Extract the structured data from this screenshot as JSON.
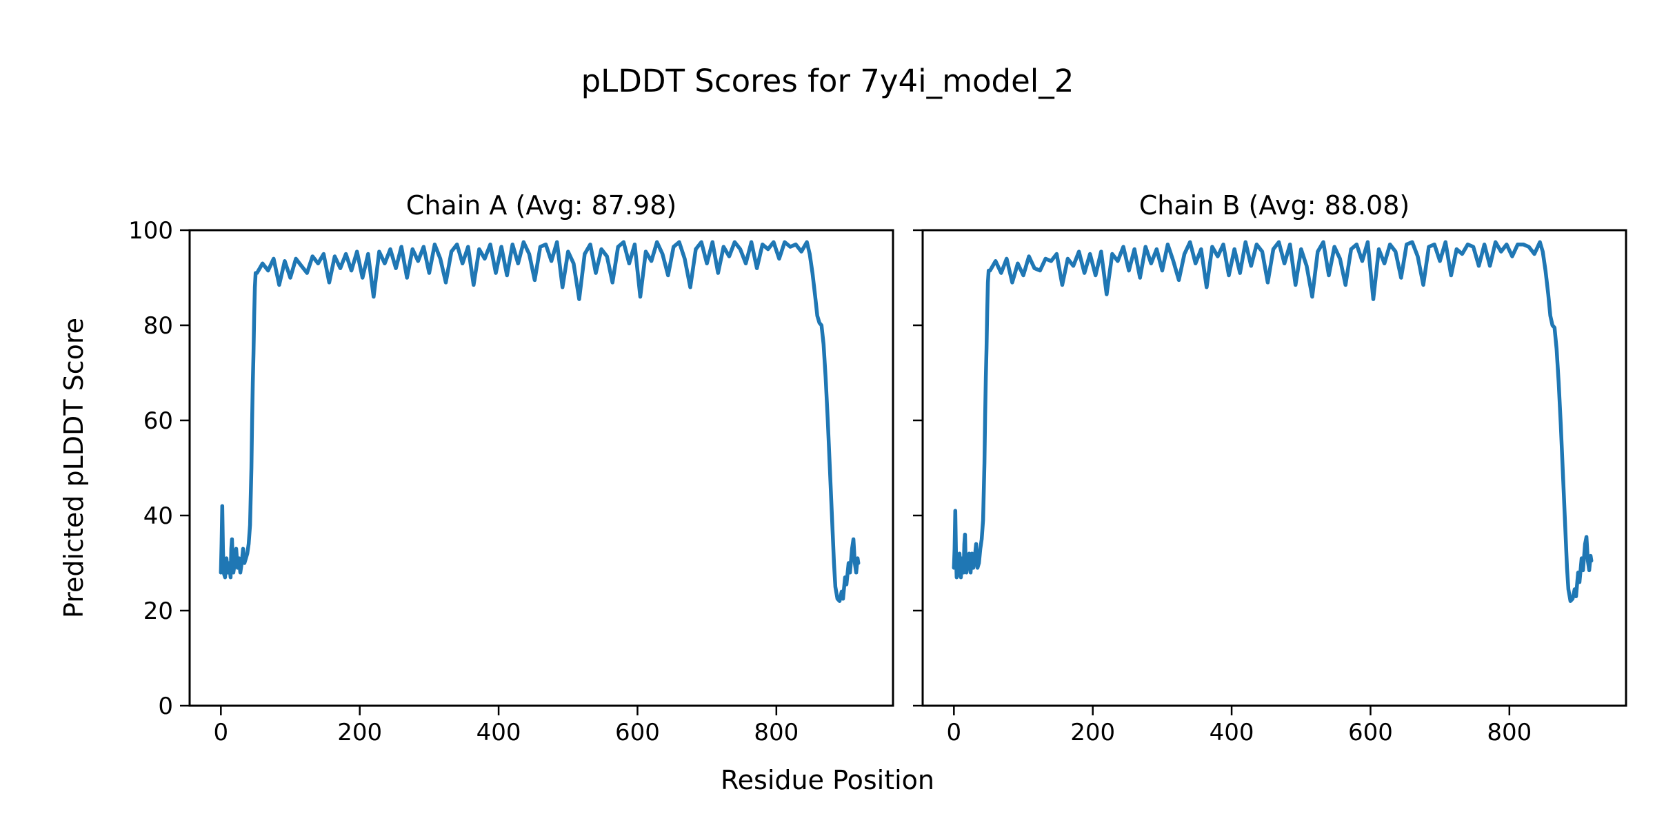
{
  "figure": {
    "title": "pLDDT Scores for 7y4i_model_2",
    "xlabel": "Residue Position",
    "ylabel": "Predicted pLDDT Score",
    "background_color": "#ffffff",
    "text_color": "#000000",
    "spine_color": "#000000",
    "line_color": "#1f77b4"
  },
  "chart_data": [
    {
      "type": "line",
      "title": "Chain A (Avg: 87.98)",
      "chain": "A",
      "avg_plddt": 87.98,
      "xlim": [
        -45,
        968
      ],
      "ylim": [
        0,
        100
      ],
      "x_ticks": [
        0,
        200,
        400,
        600,
        800
      ],
      "y_ticks": [
        0,
        20,
        40,
        60,
        80,
        100
      ],
      "grid": false,
      "legend": false,
      "show_y_labels": true,
      "series": [
        {
          "name": "pLDDT",
          "color": "#1f77b4",
          "head": [
            [
              0,
              28
            ],
            [
              1,
              34
            ],
            [
              2,
              42
            ],
            [
              3,
              33
            ],
            [
              4,
              28
            ],
            [
              6,
              27
            ],
            [
              8,
              31
            ],
            [
              10,
              28
            ],
            [
              12,
              30
            ],
            [
              14,
              27
            ],
            [
              15,
              33
            ],
            [
              16,
              35
            ],
            [
              17,
              31
            ],
            [
              18,
              28
            ],
            [
              20,
              30
            ],
            [
              22,
              33
            ],
            [
              24,
              29
            ],
            [
              26,
              31
            ],
            [
              28,
              28
            ],
            [
              30,
              30
            ],
            [
              32,
              33
            ],
            [
              34,
              30
            ],
            [
              36,
              31
            ],
            [
              38,
              32
            ],
            [
              40,
              34
            ],
            [
              42,
              38
            ],
            [
              44,
              50
            ],
            [
              45,
              60
            ],
            [
              46,
              68
            ],
            [
              47,
              74
            ],
            [
              48,
              82
            ],
            [
              49,
              88
            ],
            [
              50,
              91
            ]
          ],
          "plateau": {
            "x0": 52,
            "dx": 8,
            "y": [
              91,
              93,
              91.5,
              94,
              88.5,
              93.5,
              90,
              94,
              92.5,
              91,
              94.5,
              93,
              95,
              89,
              94.5,
              92,
              95,
              91.5,
              95.5,
              90,
              95,
              86,
              95.5,
              93,
              96,
              92,
              96.5,
              90,
              96,
              93.5,
              96.5,
              91,
              97,
              94,
              89,
              95.5,
              97,
              93,
              96.5,
              88.5,
              96,
              94,
              97,
              91,
              96.5,
              90.5,
              97,
              93,
              97.5,
              95,
              89.5,
              96.5,
              97,
              93.5,
              97.5,
              88,
              95.5,
              93,
              85.5,
              95,
              97,
              91,
              96,
              94.5,
              89,
              96.5,
              97.5,
              93,
              97,
              86,
              95.5,
              93.5,
              97.5,
              95,
              90.5,
              96.5,
              97.5,
              94,
              88,
              96,
              97.5,
              93,
              97.5,
              91,
              96.5,
              94.5,
              97.5,
              96,
              93,
              97.5,
              92,
              97,
              96,
              97.5,
              94,
              97.5,
              96.5,
              97,
              95.5,
              97.5
            ]
          },
          "tail": [
            [
              848,
              95
            ],
            [
              852,
              91
            ],
            [
              856,
              86
            ],
            [
              859,
              82
            ],
            [
              862,
              80.5
            ],
            [
              865,
              80
            ],
            [
              868,
              76
            ],
            [
              871,
              69
            ],
            [
              874,
              60
            ],
            [
              877,
              50
            ],
            [
              880,
              40
            ],
            [
              883,
              30
            ],
            [
              885,
              25
            ],
            [
              888,
              22.5
            ],
            [
              891,
              22
            ],
            [
              894,
              24
            ],
            [
              896,
              22.5
            ],
            [
              899,
              27
            ],
            [
              901,
              25.5
            ],
            [
              904,
              30
            ],
            [
              906,
              28
            ],
            [
              909,
              33
            ],
            [
              911,
              35
            ],
            [
              913,
              30
            ],
            [
              915,
              28
            ],
            [
              917,
              31
            ],
            [
              918,
              30
            ]
          ]
        }
      ]
    },
    {
      "type": "line",
      "title": "Chain B (Avg: 88.08)",
      "chain": "B",
      "avg_plddt": 88.08,
      "xlim": [
        -45,
        968
      ],
      "ylim": [
        0,
        100
      ],
      "x_ticks": [
        0,
        200,
        400,
        600,
        800
      ],
      "y_ticks": [
        0,
        20,
        40,
        60,
        80,
        100
      ],
      "grid": false,
      "legend": false,
      "show_y_labels": false,
      "series": [
        {
          "name": "pLDDT",
          "color": "#1f77b4",
          "head": [
            [
              0,
              29
            ],
            [
              1,
              33
            ],
            [
              2,
              41
            ],
            [
              3,
              32
            ],
            [
              4,
              27
            ],
            [
              6,
              28
            ],
            [
              8,
              32
            ],
            [
              10,
              27
            ],
            [
              12,
              31
            ],
            [
              14,
              28
            ],
            [
              15,
              34
            ],
            [
              16,
              36
            ],
            [
              17,
              30
            ],
            [
              18,
              28
            ],
            [
              20,
              31
            ],
            [
              22,
              32
            ],
            [
              24,
              28
            ],
            [
              26,
              32
            ],
            [
              28,
              29
            ],
            [
              30,
              31
            ],
            [
              32,
              34
            ],
            [
              34,
              29
            ],
            [
              36,
              30
            ],
            [
              38,
              33
            ],
            [
              40,
              35
            ],
            [
              42,
              39
            ],
            [
              44,
              51
            ],
            [
              45,
              61
            ],
            [
              46,
              69
            ],
            [
              47,
              75
            ],
            [
              48,
              83
            ],
            [
              49,
              89
            ],
            [
              50,
              91.5
            ]
          ],
          "plateau": {
            "x0": 52,
            "dx": 8,
            "y": [
              91.5,
              93.5,
              91,
              94,
              89,
              93,
              90.5,
              94.5,
              92,
              91.5,
              94,
              93.5,
              95,
              88.5,
              94,
              92.5,
              95.5,
              91,
              95,
              90.5,
              95.5,
              86.5,
              95,
              93.5,
              96.5,
              91.5,
              96,
              90,
              96.5,
              93,
              96,
              91.5,
              97,
              93.5,
              89.5,
              95,
              97.5,
              93,
              96,
              88,
              96.5,
              94.5,
              97,
              90.5,
              96,
              91,
              97.5,
              92.5,
              97,
              95.5,
              89,
              96,
              97.5,
              93,
              97,
              88.5,
              96,
              92.5,
              86,
              95.5,
              97.5,
              90.5,
              96.5,
              94,
              88.5,
              96,
              97,
              93.5,
              97.5,
              85.5,
              96,
              93,
              97,
              95.5,
              90,
              97,
              97.5,
              94.5,
              88.5,
              96.5,
              97,
              93.5,
              97.5,
              90.5,
              96,
              95,
              97,
              96.5,
              92.5,
              97,
              92.5,
              97.5,
              95.5,
              97,
              94.5,
              97,
              97,
              96.5,
              95,
              97.5
            ]
          },
          "tail": [
            [
              848,
              95.5
            ],
            [
              852,
              91.5
            ],
            [
              856,
              86.5
            ],
            [
              859,
              82
            ],
            [
              862,
              80
            ],
            [
              865,
              79.5
            ],
            [
              868,
              75
            ],
            [
              871,
              68
            ],
            [
              874,
              59
            ],
            [
              877,
              49
            ],
            [
              880,
              39
            ],
            [
              883,
              29
            ],
            [
              885,
              24.5
            ],
            [
              888,
              22
            ],
            [
              891,
              22.5
            ],
            [
              894,
              24.5
            ],
            [
              896,
              23
            ],
            [
              899,
              28
            ],
            [
              901,
              26
            ],
            [
              904,
              31
            ],
            [
              906,
              28.5
            ],
            [
              909,
              34
            ],
            [
              911,
              35.5
            ],
            [
              913,
              30.5
            ],
            [
              915,
              28.5
            ],
            [
              917,
              31.5
            ],
            [
              918,
              30.5
            ]
          ]
        }
      ]
    }
  ]
}
